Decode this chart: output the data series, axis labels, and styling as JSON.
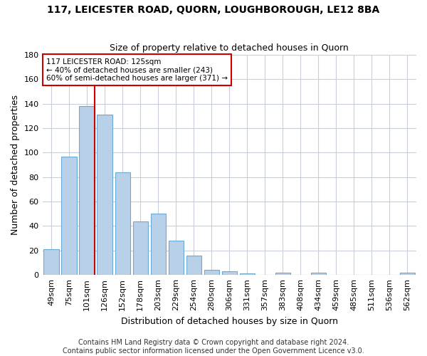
{
  "title": "117, LEICESTER ROAD, QUORN, LOUGHBOROUGH, LE12 8BA",
  "subtitle": "Size of property relative to detached houses in Quorn",
  "xlabel": "Distribution of detached houses by size in Quorn",
  "ylabel": "Number of detached properties",
  "categories": [
    "49sqm",
    "75sqm",
    "101sqm",
    "126sqm",
    "152sqm",
    "178sqm",
    "203sqm",
    "229sqm",
    "254sqm",
    "280sqm",
    "306sqm",
    "331sqm",
    "357sqm",
    "383sqm",
    "408sqm",
    "434sqm",
    "459sqm",
    "485sqm",
    "511sqm",
    "536sqm",
    "562sqm"
  ],
  "values": [
    21,
    97,
    138,
    131,
    84,
    44,
    50,
    28,
    16,
    4,
    3,
    1,
    0,
    2,
    0,
    2,
    0,
    0,
    0,
    0,
    2
  ],
  "bar_color": "#b8d0e8",
  "bar_edge_color": "#6aaad4",
  "vline_x_index": 2,
  "vline_side": "right",
  "vline_color": "#cc0000",
  "ylim": [
    0,
    180
  ],
  "yticks": [
    0,
    20,
    40,
    60,
    80,
    100,
    120,
    140,
    160,
    180
  ],
  "annotation_text": "117 LEICESTER ROAD: 125sqm\n← 40% of detached houses are smaller (243)\n60% of semi-detached houses are larger (371) →",
  "annotation_box_color": "#ffffff",
  "annotation_box_edge_color": "#cc0000",
  "footer_line1": "Contains HM Land Registry data © Crown copyright and database right 2024.",
  "footer_line2": "Contains public sector information licensed under the Open Government Licence v3.0.",
  "background_color": "#ffffff",
  "grid_color": "#c8cfd8",
  "title_fontsize": 10,
  "subtitle_fontsize": 9,
  "xlabel_fontsize": 9,
  "ylabel_fontsize": 9,
  "tick_fontsize": 8,
  "annotation_fontsize": 7.5,
  "footer_fontsize": 7
}
